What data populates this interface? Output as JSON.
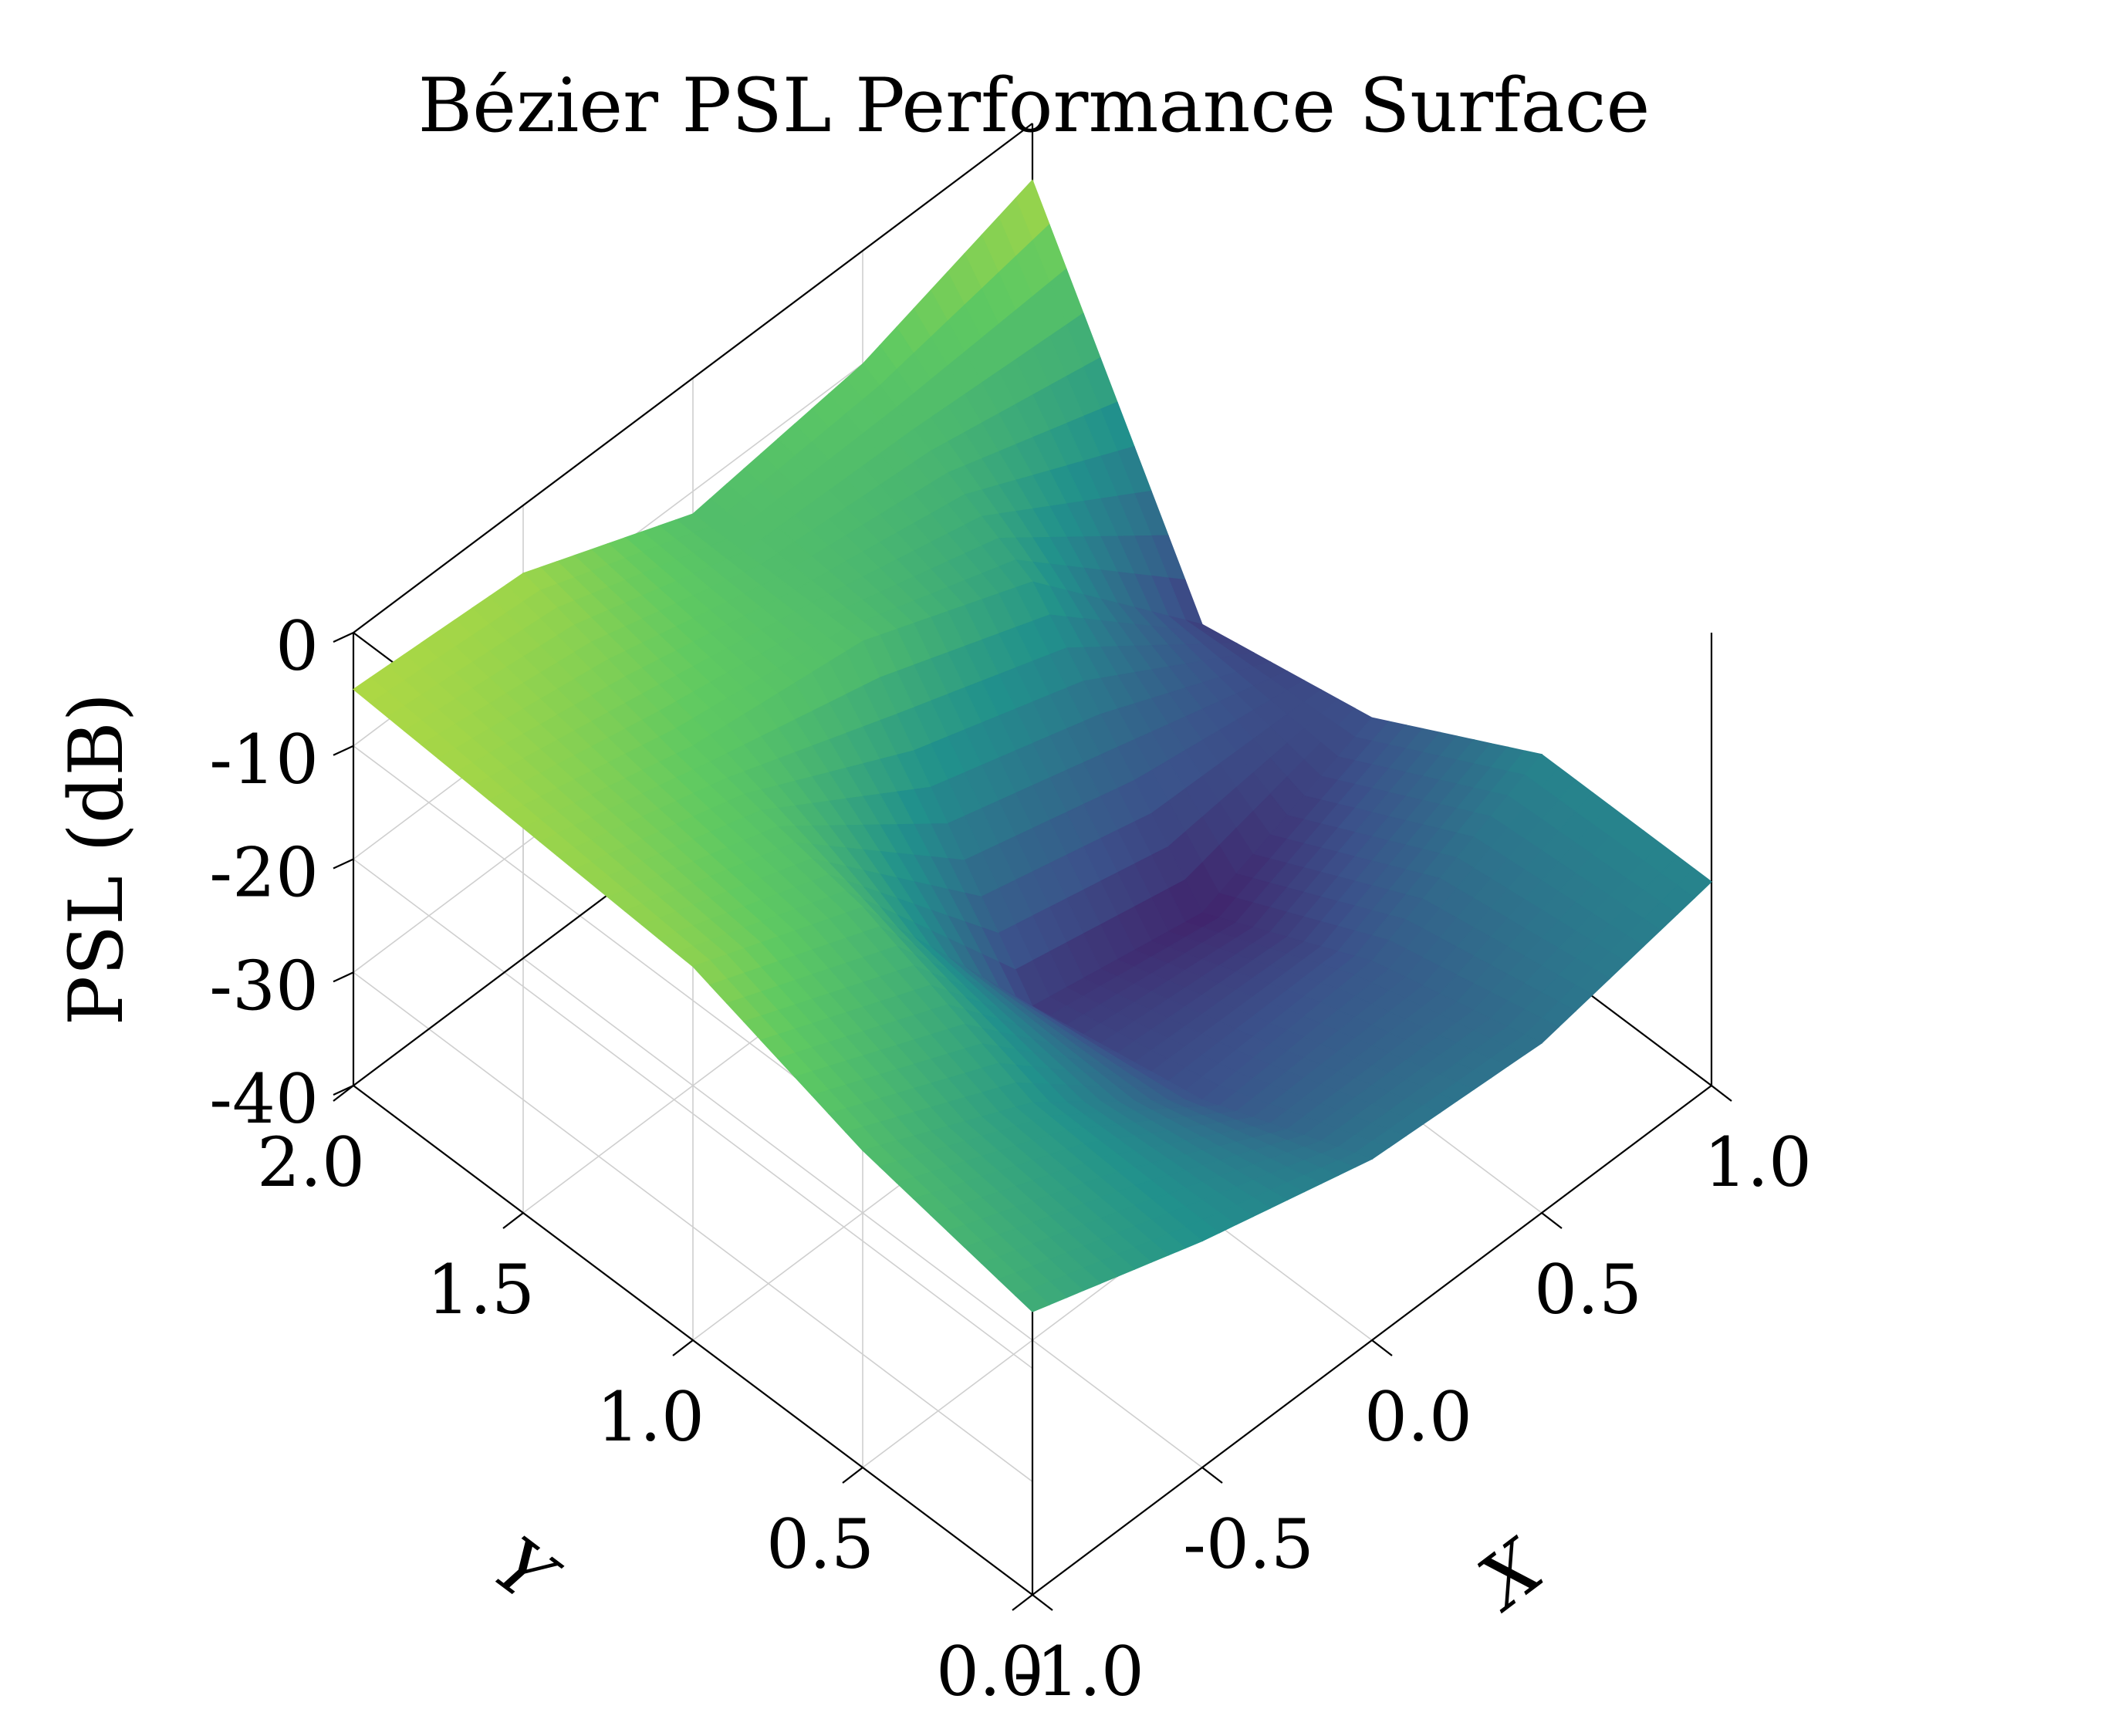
{
  "chart_data": {
    "type": "surface",
    "title": "Bézier PSL Performance Surface",
    "xlabel": "X",
    "ylabel": "Y",
    "zlabel": "PSL (dB)",
    "xlim": [
      -1.0,
      1.0
    ],
    "ylim": [
      0.0,
      2.0
    ],
    "zlim": [
      -40,
      0
    ],
    "x_ticks": [
      "-1.0",
      "-0.5",
      "0.0",
      "0.5",
      "1.0"
    ],
    "y_ticks": [
      "0.0",
      "0.5",
      "1.0",
      "1.5",
      "2.0"
    ],
    "z_ticks": [
      "-40",
      "-30",
      "-20",
      "-10",
      "0"
    ],
    "colormap": "viridis",
    "grid": true,
    "x": [
      -1.0,
      -0.5,
      0.0,
      0.5,
      1.0
    ],
    "y": [
      0.0,
      0.5,
      1.0,
      1.5,
      2.0
    ],
    "z": [
      [
        -15,
        -20,
        -24,
        -25,
        -22
      ],
      [
        -12,
        -19,
        -30,
        -29,
        -22
      ],
      [
        -7,
        -13,
        -33,
        -36,
        -30
      ],
      [
        -6,
        -10,
        -12,
        -18,
        -33
      ],
      [
        -5,
        -6,
        -12,
        -10,
        -5
      ]
    ]
  }
}
